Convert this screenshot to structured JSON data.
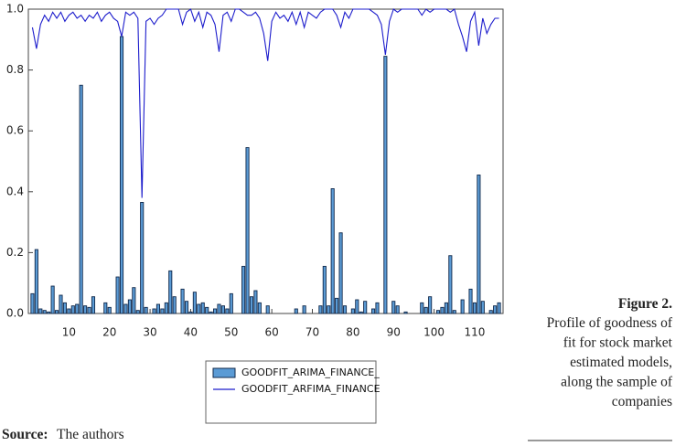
{
  "chart_data": {
    "type": "bar-line",
    "x": [
      1,
      2,
      3,
      4,
      5,
      6,
      7,
      8,
      9,
      10,
      11,
      12,
      13,
      14,
      15,
      16,
      17,
      18,
      19,
      20,
      21,
      22,
      23,
      24,
      25,
      26,
      27,
      28,
      29,
      30,
      31,
      32,
      33,
      34,
      35,
      36,
      37,
      38,
      39,
      40,
      41,
      42,
      43,
      44,
      45,
      46,
      47,
      48,
      49,
      50,
      51,
      52,
      53,
      54,
      55,
      56,
      57,
      58,
      59,
      60,
      61,
      62,
      63,
      64,
      65,
      66,
      67,
      68,
      69,
      70,
      71,
      72,
      73,
      74,
      75,
      76,
      77,
      78,
      79,
      80,
      81,
      82,
      83,
      84,
      85,
      86,
      87,
      88,
      89,
      90,
      91,
      92,
      93,
      94,
      95,
      96,
      97,
      98,
      99,
      100,
      101,
      102,
      103,
      104,
      105,
      106,
      107,
      108,
      109,
      110,
      111,
      112,
      113,
      114,
      115,
      116
    ],
    "series": [
      {
        "name": "GOODFIT_ARIMA_FINANCE_",
        "color": "#5b9bd5",
        "kind": "bar",
        "values": [
          0.065,
          0.21,
          0.015,
          0.01,
          0.005,
          0.09,
          0.01,
          0.06,
          0.035,
          0.015,
          0.025,
          0.03,
          0.75,
          0.025,
          0.02,
          0.055,
          0,
          0,
          0.035,
          0.02,
          0,
          0.12,
          0.91,
          0.03,
          0.045,
          0.085,
          0.01,
          0.365,
          0.02,
          0,
          0.015,
          0.03,
          0.015,
          0.035,
          0.14,
          0.055,
          0,
          0.08,
          0.04,
          0.005,
          0.07,
          0.03,
          0.035,
          0.02,
          0.005,
          0.015,
          0.03,
          0.025,
          0.015,
          0.065,
          0,
          0,
          0.155,
          0.545,
          0.055,
          0.075,
          0.035,
          0,
          0.025,
          0,
          0,
          0,
          0,
          0,
          0,
          0.015,
          0,
          0.025,
          0,
          0,
          0,
          0.025,
          0.155,
          0.025,
          0.41,
          0.05,
          0.265,
          0.025,
          0,
          0.015,
          0.045,
          0.005,
          0.04,
          0,
          0.015,
          0.035,
          0,
          0.845,
          0,
          0.04,
          0.025,
          0,
          0.005,
          0,
          0,
          0,
          0.035,
          0.02,
          0.055,
          0,
          0.01,
          0.02,
          0.035,
          0.19,
          0.01,
          0,
          0.045,
          0,
          0.08,
          0.035,
          0.455,
          0.04,
          0,
          0.01,
          0.025,
          0.035
        ]
      },
      {
        "name": "GOODFIT_ARFIMA_FINANCE",
        "color": "#1c1ccc",
        "kind": "line",
        "values": [
          0.94,
          0.87,
          0.95,
          0.98,
          0.96,
          0.99,
          0.97,
          0.99,
          0.96,
          0.98,
          0.99,
          0.97,
          0.98,
          0.96,
          0.98,
          0.97,
          0.99,
          0.96,
          0.98,
          0.99,
          0.97,
          0.96,
          0.91,
          0.99,
          0.98,
          0.99,
          0.97,
          0.38,
          0.96,
          0.97,
          0.95,
          0.97,
          0.98,
          1,
          1,
          1,
          1,
          0.95,
          0.99,
          1,
          0.96,
          0.99,
          0.94,
          0.99,
          0.98,
          0.95,
          0.86,
          0.98,
          0.99,
          0.96,
          1,
          1,
          0.99,
          0.98,
          0.98,
          0.99,
          0.97,
          0.92,
          0.83,
          0.96,
          0.99,
          0.97,
          0.98,
          0.96,
          0.99,
          0.95,
          0.99,
          0.94,
          0.99,
          0.98,
          0.97,
          0.99,
          1,
          1,
          1,
          0.98,
          0.94,
          0.99,
          0.97,
          1,
          1,
          1,
          1,
          1,
          0.99,
          0.98,
          0.95,
          0.85,
          0.96,
          1,
          0.99,
          1,
          1,
          1,
          1,
          1,
          0.98,
          1,
          0.99,
          1,
          1,
          1,
          1,
          0.99,
          1,
          0.95,
          0.91,
          0.86,
          0.96,
          0.99,
          0.88,
          0.97,
          0.92,
          0.95,
          0.97,
          0.97
        ]
      }
    ],
    "xlim": [
      0,
      117
    ],
    "xticks": [
      10,
      20,
      30,
      40,
      50,
      60,
      70,
      80,
      90,
      100,
      110
    ],
    "ylim": [
      0,
      1
    ],
    "yticks": [
      {
        "value": 0,
        "label": "0.0"
      },
      {
        "value": 0.2,
        "label": "0.2"
      },
      {
        "value": 0.4,
        "label": "0.4"
      },
      {
        "value": 0.6,
        "label": "0.6"
      },
      {
        "value": 0.8,
        "label": "0.8"
      },
      {
        "value": 1,
        "label": "1.0"
      }
    ]
  },
  "caption": {
    "title": "Figure 2.",
    "lines": [
      "Profile of goodness of",
      "fit for stock market",
      "estimated models,",
      "along the sample of",
      "companies"
    ]
  },
  "source": {
    "label": "Source:",
    "text": "The authors"
  }
}
